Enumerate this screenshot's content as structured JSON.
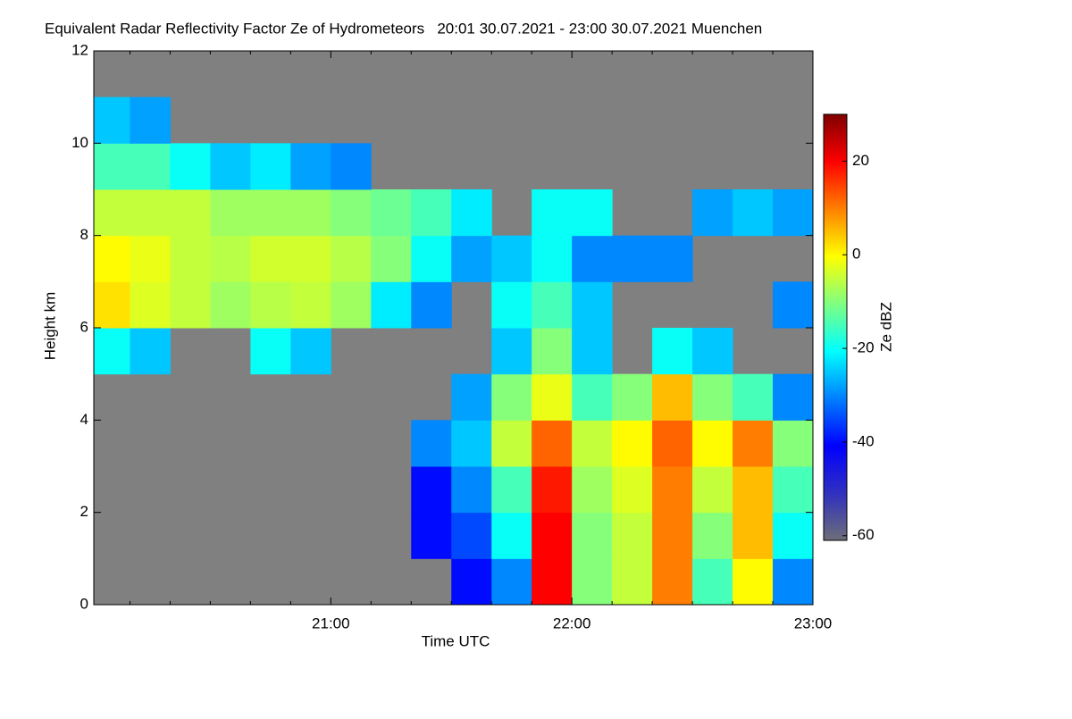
{
  "chart_data": {
    "type": "heatmap",
    "title": "Equivalent Radar Reflectivity Factor Ze of Hydrometeors   20:01 30.07.2021 - 23:00 30.07.2021 Muenchen",
    "xlabel": "Time UTC",
    "ylabel": "Height km",
    "colorbar_label": "Ze dBZ",
    "xlim": [
      20.0167,
      23.0
    ],
    "xticks": [
      {
        "value": 21,
        "label": "21:00"
      },
      {
        "value": 22,
        "label": "22:00"
      },
      {
        "value": 23,
        "label": "23:00"
      }
    ],
    "xminorticks": [
      20.1667,
      20.3333,
      20.5,
      20.6667,
      20.8333,
      21.1667,
      21.3333,
      21.5,
      21.6667,
      21.8333,
      22.1667,
      22.3333,
      22.5,
      22.6667,
      22.8333
    ],
    "ylim": [
      0,
      12
    ],
    "yticks": [
      0,
      2,
      4,
      6,
      8,
      10,
      12
    ],
    "clim": [
      -61,
      30
    ],
    "cticks": [
      -60,
      -40,
      -20,
      0,
      20
    ],
    "null_color": "#808080",
    "colormap": [
      "#6e6e78",
      "#3030c0",
      "#0000ff",
      "#0080ff",
      "#00ffff",
      "#80ff80",
      "#ffff00",
      "#ff8000",
      "#ff0000",
      "#800000"
    ],
    "xbins": [
      20.0167,
      20.1667,
      20.3333,
      20.5,
      20.6667,
      20.8333,
      21,
      21.1667,
      21.3333,
      21.5,
      21.6667,
      21.8333,
      22,
      22.1667,
      22.3333,
      22.5,
      22.6667,
      22.8333,
      23
    ],
    "ybins": [
      0,
      1,
      2,
      3,
      4,
      5,
      6,
      7,
      8,
      9,
      10,
      11,
      12
    ],
    "z": [
      [
        null,
        null,
        null,
        null,
        null,
        null,
        null,
        null,
        null,
        -40,
        -30,
        20,
        -10,
        -5,
        10,
        -15,
        0,
        -30
      ],
      [
        null,
        null,
        null,
        null,
        null,
        null,
        null,
        null,
        -40,
        -35,
        -20,
        20,
        -10,
        -5,
        10,
        -10,
        5,
        -20
      ],
      [
        null,
        null,
        null,
        null,
        null,
        null,
        null,
        null,
        -40,
        -30,
        -15,
        18,
        -8,
        -3,
        10,
        -5,
        5,
        -15
      ],
      [
        null,
        null,
        null,
        null,
        null,
        null,
        null,
        null,
        -30,
        -25,
        -5,
        12,
        -5,
        0,
        12,
        0,
        10,
        -10
      ],
      [
        null,
        null,
        null,
        null,
        null,
        null,
        null,
        null,
        null,
        -28,
        -10,
        -2,
        -15,
        -10,
        5,
        -10,
        -15,
        -30
      ],
      [
        -20,
        -25,
        null,
        null,
        -20,
        -25,
        null,
        null,
        null,
        null,
        -25,
        -10,
        -25,
        null,
        -20,
        -25,
        null,
        null
      ],
      [
        2,
        -3,
        -5,
        -8,
        -6,
        -5,
        -8,
        -22,
        -30,
        null,
        -20,
        -15,
        -25,
        null,
        null,
        null,
        null,
        -30
      ],
      [
        0,
        -2,
        -5,
        -6,
        -4,
        -4,
        -6,
        -10,
        -20,
        -28,
        -25,
        -20,
        -30,
        -30,
        -30,
        null,
        null,
        null
      ],
      [
        -5,
        -5,
        -5,
        -8,
        -8,
        -8,
        -10,
        -12,
        -15,
        -22,
        null,
        -20,
        -20,
        null,
        null,
        -28,
        -25,
        -28
      ],
      [
        -15,
        -15,
        -20,
        -25,
        -22,
        -28,
        -30,
        null,
        null,
        null,
        null,
        null,
        null,
        null,
        null,
        null,
        null,
        null
      ],
      [
        -25,
        -28,
        null,
        null,
        null,
        null,
        null,
        null,
        null,
        null,
        null,
        null,
        null,
        null,
        null,
        null,
        null,
        null
      ],
      [
        null,
        null,
        null,
        null,
        null,
        null,
        null,
        null,
        null,
        null,
        null,
        null,
        null,
        null,
        null,
        null,
        null,
        null
      ]
    ]
  }
}
